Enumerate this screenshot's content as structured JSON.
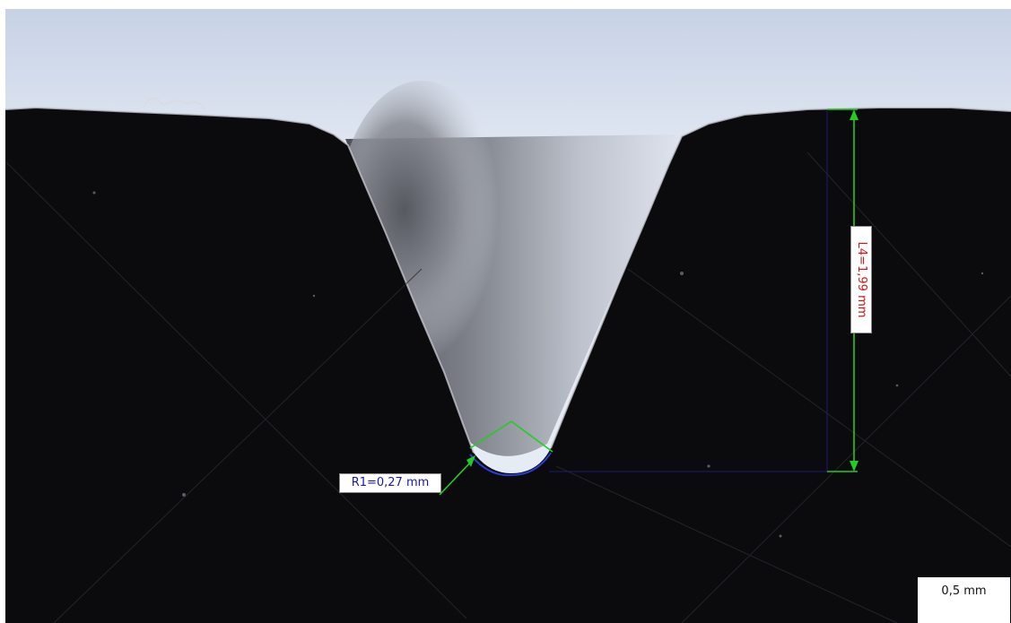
{
  "measurements": {
    "radius": {
      "label": "R1=0,27 mm",
      "text_color": "#1a1ab0",
      "construction_color": "#22cc22"
    },
    "depth": {
      "label": "L4=1,99 mm",
      "text_color": "#d01818",
      "arrow_color": "#22cc22",
      "reference_line_color": "#1a1a80"
    }
  },
  "scale_bar": {
    "label": "0,5 mm"
  },
  "colors": {
    "material": "#0b0b0d",
    "background_light": "#dfe6f1",
    "groove_shadow": "#5e6168",
    "edge_highlight": "#c9ccd4"
  }
}
